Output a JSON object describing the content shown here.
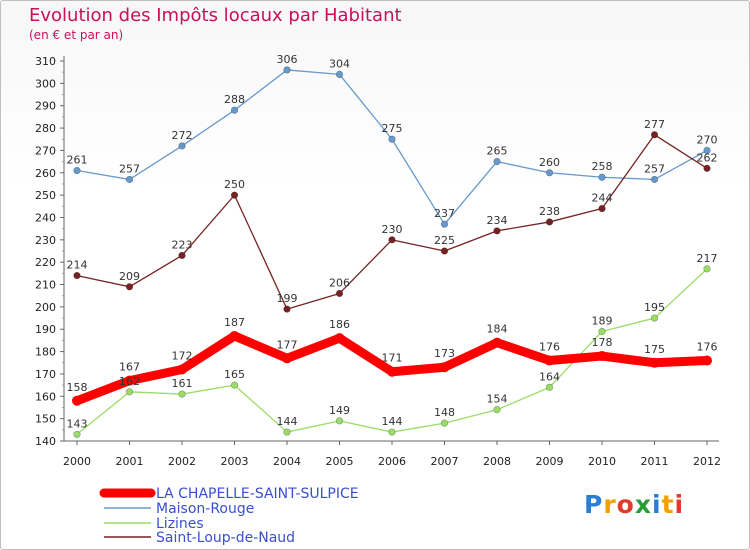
{
  "title": "Evolution des Impôts locaux par Habitant",
  "subtitle": "(en € et par an)",
  "logo": "Proxiti",
  "chart_data": {
    "type": "line",
    "x": [
      "2000",
      "2001",
      "2002",
      "2003",
      "2004",
      "2005",
      "2006",
      "2007",
      "2008",
      "2009",
      "2010",
      "2011",
      "2012"
    ],
    "ylim": [
      140,
      310
    ],
    "yticks": [
      140,
      150,
      160,
      170,
      180,
      190,
      200,
      210,
      220,
      230,
      240,
      250,
      260,
      270,
      280,
      290,
      300,
      310
    ],
    "grid": false,
    "legend_position": "bottom-left",
    "series": [
      {
        "name": "LA CHAPELLE-SAINT-SULPICE",
        "color": "#ff0000",
        "values": [
          158,
          167,
          172,
          187,
          177,
          186,
          171,
          173,
          184,
          176,
          178,
          175,
          176
        ]
      },
      {
        "name": "Maison-Rouge",
        "color": "#6699cc",
        "values": [
          261,
          257,
          272,
          288,
          306,
          304,
          275,
          237,
          265,
          260,
          258,
          257,
          270
        ]
      },
      {
        "name": "Lizines",
        "color": "#99dd66",
        "values": [
          143,
          162,
          161,
          165,
          144,
          149,
          144,
          148,
          154,
          164,
          189,
          195,
          217
        ]
      },
      {
        "name": "Saint-Loup-de-Naud",
        "color": "#772222",
        "values": [
          214,
          209,
          223,
          250,
          199,
          206,
          230,
          225,
          234,
          238,
          244,
          277,
          262
        ]
      }
    ]
  }
}
